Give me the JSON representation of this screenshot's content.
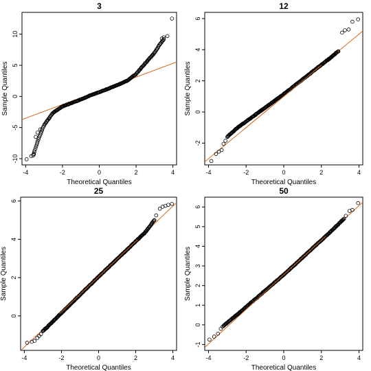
{
  "chart_data": [
    {
      "type": "scatter",
      "title": "3",
      "xlabel": "Theoretical Quantiles",
      "ylabel": "Sample Quantiles",
      "xlim": [
        -4.2,
        4.2
      ],
      "ylim": [
        -11,
        13.5
      ],
      "xticks": [
        -4,
        -2,
        0,
        2,
        4
      ],
      "yticks": [
        -10,
        -5,
        0,
        5,
        10
      ],
      "ytick_labels": [
        "-10",
        "-5",
        "0",
        "5",
        "10"
      ],
      "ref_line": {
        "intercept": 0.9,
        "slope": 1.1,
        "color": "#d9691c"
      },
      "series": [
        {
          "shape": "smooth",
          "points": [
            [
              -3.6,
              -9.5
            ],
            [
              -3.3,
              -6.8
            ],
            [
              -3.0,
              -4.6
            ],
            [
              -2.5,
              -2.6
            ],
            [
              -2.0,
              -1.6
            ],
            [
              -1.5,
              -1.05
            ],
            [
              -1.0,
              -0.5
            ],
            [
              -0.5,
              0.15
            ],
            [
              0,
              0.7
            ],
            [
              0.5,
              1.25
            ],
            [
              1.0,
              1.85
            ],
            [
              1.5,
              2.5
            ],
            [
              2.0,
              3.6
            ],
            [
              2.5,
              5.3
            ],
            [
              3.0,
              7.0
            ],
            [
              3.3,
              8.4
            ],
            [
              3.5,
              9.2
            ]
          ],
          "outliers": [
            [
              -3.95,
              -10.1
            ],
            [
              -3.7,
              -9.6
            ],
            [
              -3.55,
              -9.3
            ],
            [
              -3.45,
              -6.5
            ],
            [
              -3.35,
              -5.8
            ],
            [
              -3.2,
              -5.3
            ],
            [
              3.4,
              9.3
            ],
            [
              3.5,
              9.5
            ],
            [
              3.7,
              9.7
            ],
            [
              3.95,
              12.5
            ]
          ]
        }
      ]
    },
    {
      "type": "scatter",
      "title": "12",
      "xlabel": "Theoretical Quantiles",
      "ylabel": "Sample Quantiles",
      "xlim": [
        -4.2,
        4.2
      ],
      "ylim": [
        -3.4,
        6.4
      ],
      "xticks": [
        -4,
        -2,
        0,
        2,
        4
      ],
      "yticks": [
        -2,
        0,
        2,
        4,
        6
      ],
      "ytick_labels": [
        "-2",
        "0",
        "2",
        "4",
        "6"
      ],
      "ref_line": {
        "intercept": 1.0,
        "slope": 1.0,
        "color": "#d9691c"
      },
      "series": [
        {
          "shape": "linear",
          "points": [
            [
              -3.0,
              -1.6
            ],
            [
              -2.5,
              -1.05
            ],
            [
              0,
              1.15
            ],
            [
              2.5,
              3.5
            ],
            [
              2.9,
              3.9
            ]
          ],
          "outliers": [
            [
              -3.85,
              -3.15
            ],
            [
              -3.6,
              -2.7
            ],
            [
              -3.45,
              -2.55
            ],
            [
              -3.3,
              -2.45
            ],
            [
              -3.2,
              -2.05
            ],
            [
              -3.1,
              -1.85
            ],
            [
              3.1,
              5.1
            ],
            [
              3.25,
              5.25
            ],
            [
              3.45,
              5.3
            ],
            [
              3.65,
              5.8
            ],
            [
              3.95,
              5.95
            ]
          ]
        }
      ]
    },
    {
      "type": "scatter",
      "title": "25",
      "xlabel": "Theoretical Quantiles",
      "ylabel": "Sample Quantiles",
      "xlim": [
        -4.2,
        4.2
      ],
      "ylim": [
        -1.8,
        6.2
      ],
      "xticks": [
        -4,
        -2,
        0,
        2,
        4
      ],
      "yticks": [
        0,
        2,
        4,
        6
      ],
      "ytick_labels": [
        "0",
        "2",
        "4",
        "6"
      ],
      "ref_line": {
        "intercept": 2.05,
        "slope": 0.92,
        "color": "#d9691c"
      },
      "series": [
        {
          "shape": "linear",
          "points": [
            [
              -3.0,
              -0.8
            ],
            [
              0,
              2.05
            ],
            [
              2.5,
              4.35
            ],
            [
              3.0,
              5.0
            ]
          ],
          "outliers": [
            [
              -3.85,
              -1.4
            ],
            [
              -3.6,
              -1.35
            ],
            [
              -3.45,
              -1.3
            ],
            [
              -3.3,
              -1.15
            ],
            [
              -3.2,
              -1.05
            ],
            [
              -3.1,
              -0.95
            ],
            [
              3.1,
              5.25
            ],
            [
              3.3,
              5.6
            ],
            [
              3.45,
              5.7
            ],
            [
              3.6,
              5.75
            ],
            [
              3.75,
              5.8
            ],
            [
              3.95,
              5.85
            ]
          ]
        }
      ]
    },
    {
      "type": "scatter",
      "title": "50",
      "xlabel": "Theoretical Quantiles",
      "ylabel": "Sample Quantiles",
      "xlim": [
        -4.2,
        4.2
      ],
      "ylim": [
        -1.3,
        6.5
      ],
      "xticks": [
        -4,
        -2,
        0,
        2,
        4
      ],
      "yticks": [
        -1,
        0,
        1,
        2,
        3,
        4,
        5,
        6
      ],
      "ytick_labels": [
        "-1",
        "0",
        "1",
        "2",
        "3",
        "4",
        "5",
        "6"
      ],
      "ref_line": {
        "intercept": 2.55,
        "slope": 0.88,
        "color": "#d9691c"
      },
      "series": [
        {
          "shape": "linear",
          "points": [
            [
              -3.2,
              -0.05
            ],
            [
              -2.2,
              0.75
            ],
            [
              0,
              2.55
            ],
            [
              2.5,
              4.75
            ],
            [
              3.2,
              5.4
            ]
          ],
          "outliers": [
            [
              -3.95,
              -0.75
            ],
            [
              -3.7,
              -0.6
            ],
            [
              -3.5,
              -0.45
            ],
            [
              -3.35,
              -0.2
            ],
            [
              -3.25,
              -0.1
            ],
            [
              3.3,
              5.55
            ],
            [
              3.5,
              5.8
            ],
            [
              3.65,
              5.85
            ],
            [
              3.95,
              6.2
            ]
          ]
        }
      ]
    }
  ]
}
